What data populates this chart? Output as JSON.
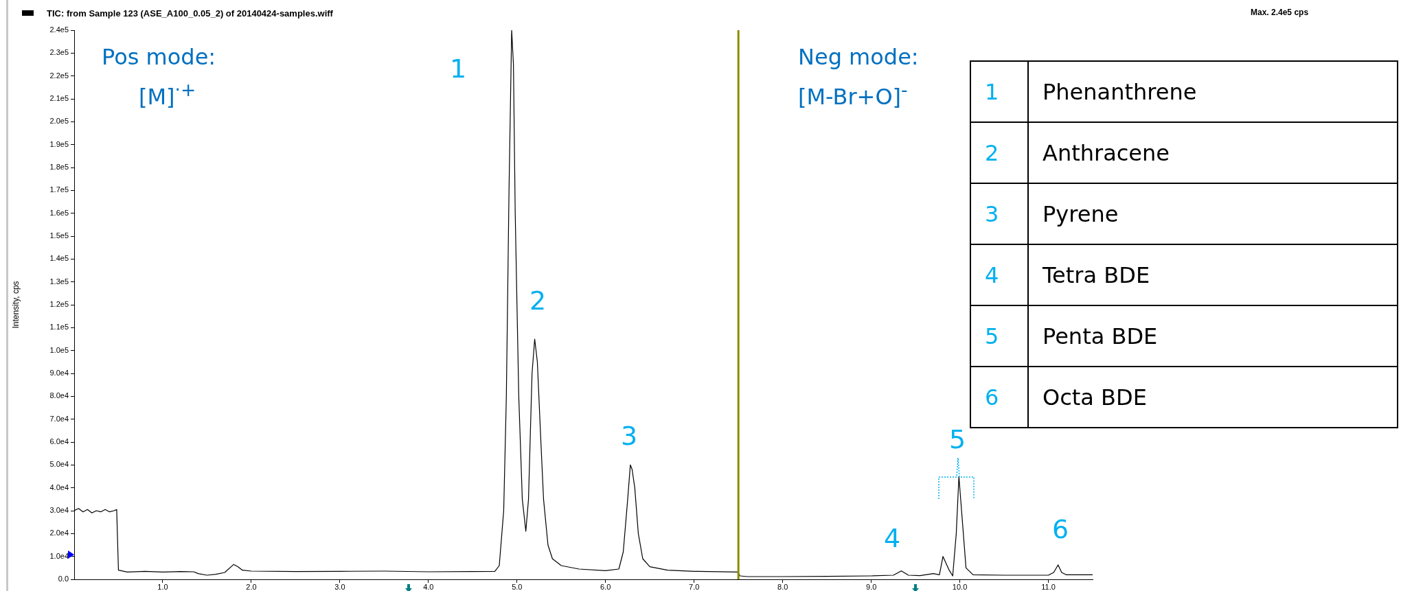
{
  "chart_data": {
    "type": "line",
    "title": "TIC: from Sample 123 (ASE_A100_0.05_2) of 20140424-samples.wiff",
    "ylabel": "Intensity, cps",
    "color": "#000000",
    "x": [
      0.0,
      0.05,
      0.1,
      0.15,
      0.2,
      0.25,
      0.3,
      0.35,
      0.4,
      0.45,
      0.48,
      0.49,
      0.5,
      0.6,
      0.8,
      1.0,
      1.2,
      1.35,
      1.4,
      1.5,
      1.6,
      1.7,
      1.8,
      1.85,
      1.9,
      2.0,
      2.5,
      3.0,
      3.5,
      4.0,
      4.5,
      4.75,
      4.8,
      4.85,
      4.88,
      4.91,
      4.94,
      4.96,
      4.98,
      5.02,
      5.06,
      5.1,
      5.13,
      5.17,
      5.2,
      5.23,
      5.27,
      5.3,
      5.35,
      5.4,
      5.5,
      5.7,
      6.0,
      6.15,
      6.2,
      6.25,
      6.28,
      6.3,
      6.33,
      6.37,
      6.42,
      6.5,
      6.7,
      7.0,
      7.49,
      7.52,
      7.6,
      8.0,
      8.5,
      9.0,
      9.25,
      9.34,
      9.42,
      9.55,
      9.7,
      9.77,
      9.81,
      9.88,
      9.92,
      9.96,
      9.99,
      10.02,
      10.07,
      10.15,
      10.5,
      11.0,
      11.06,
      11.11,
      11.15,
      11.2,
      11.5
    ],
    "values": [
      30000,
      31000,
      29500,
      30500,
      29000,
      30000,
      29500,
      30500,
      29500,
      30000,
      30500,
      17000,
      4000,
      3200,
      3500,
      3200,
      3400,
      3300,
      2500,
      1800,
      2200,
      3000,
      6500,
      5500,
      4000,
      3600,
      3400,
      3500,
      3600,
      3300,
      3400,
      3500,
      6000,
      30000,
      80000,
      170000,
      240000,
      225000,
      160000,
      80000,
      35000,
      21000,
      35000,
      90000,
      105000,
      95000,
      60000,
      35000,
      15000,
      9000,
      6000,
      4500,
      3800,
      4500,
      12000,
      35000,
      50000,
      48000,
      40000,
      20000,
      9000,
      5500,
      4000,
      3500,
      3200,
      1500,
      1200,
      1200,
      1300,
      1500,
      1800,
      3700,
      1800,
      1600,
      2500,
      2000,
      10000,
      4000,
      1500,
      20000,
      45000,
      30000,
      5000,
      2000,
      1800,
      1800,
      3000,
      6300,
      3000,
      2000,
      2000
    ],
    "xlim": [
      0,
      11.5
    ],
    "ylim": [
      0,
      240000
    ],
    "xticks": [
      {
        "value": 1,
        "label": "1.0"
      },
      {
        "value": 2,
        "label": "2.0"
      },
      {
        "value": 3,
        "label": "3.0"
      },
      {
        "value": 4,
        "label": "4.0"
      },
      {
        "value": 5,
        "label": "5.0"
      },
      {
        "value": 6,
        "label": "6.0"
      },
      {
        "value": 7,
        "label": "7.0"
      },
      {
        "value": 8,
        "label": "8.0"
      },
      {
        "value": 9,
        "label": "9.0"
      },
      {
        "value": 10,
        "label": "10.0"
      },
      {
        "value": 11,
        "label": "11.0"
      }
    ],
    "yticks": [
      {
        "value": 0,
        "label": "0.0"
      },
      {
        "value": 10000,
        "label": "1.0e4"
      },
      {
        "value": 20000,
        "label": "2.0e4"
      },
      {
        "value": 30000,
        "label": "3.0e4"
      },
      {
        "value": 40000,
        "label": "4.0e4"
      },
      {
        "value": 50000,
        "label": "5.0e4"
      },
      {
        "value": 60000,
        "label": "6.0e4"
      },
      {
        "value": 70000,
        "label": "7.0e4"
      },
      {
        "value": 80000,
        "label": "8.0e4"
      },
      {
        "value": 90000,
        "label": "9.0e4"
      },
      {
        "value": 100000,
        "label": "1.0e5"
      },
      {
        "value": 110000,
        "label": "1.1e5"
      },
      {
        "value": 120000,
        "label": "1.2e5"
      },
      {
        "value": 130000,
        "label": "1.3e5"
      },
      {
        "value": 140000,
        "label": "1.4e5"
      },
      {
        "value": 150000,
        "label": "1.5e5"
      },
      {
        "value": 160000,
        "label": "1.6e5"
      },
      {
        "value": 170000,
        "label": "1.7e5"
      },
      {
        "value": 180000,
        "label": "1.8e5"
      },
      {
        "value": 190000,
        "label": "1.9e5"
      },
      {
        "value": 200000,
        "label": "2.0e5"
      },
      {
        "value": 210000,
        "label": "2.1e5"
      },
      {
        "value": 220000,
        "label": "2.2e5"
      },
      {
        "value": 230000,
        "label": "2.3e5"
      },
      {
        "value": 240000,
        "label": "2.4e5"
      }
    ],
    "ref_lines": [
      {
        "axis": "x",
        "value": 7.5,
        "color": "#8b8b00"
      }
    ],
    "annotations": [
      "Max. 2.4e5 cps",
      "Pos mode:",
      "[M]$^{·+}$",
      "Neg mode:",
      "[M-Br+O]$^{-}$",
      "1",
      "Phenanthrene",
      "2",
      "Anthracene",
      "3",
      "Pyrene",
      "4",
      "Tetra BDE",
      "5",
      "Penta BDE",
      "6",
      "Octa BDE",
      "1",
      "2",
      "3",
      "4",
      "5",
      "6"
    ]
  }
}
